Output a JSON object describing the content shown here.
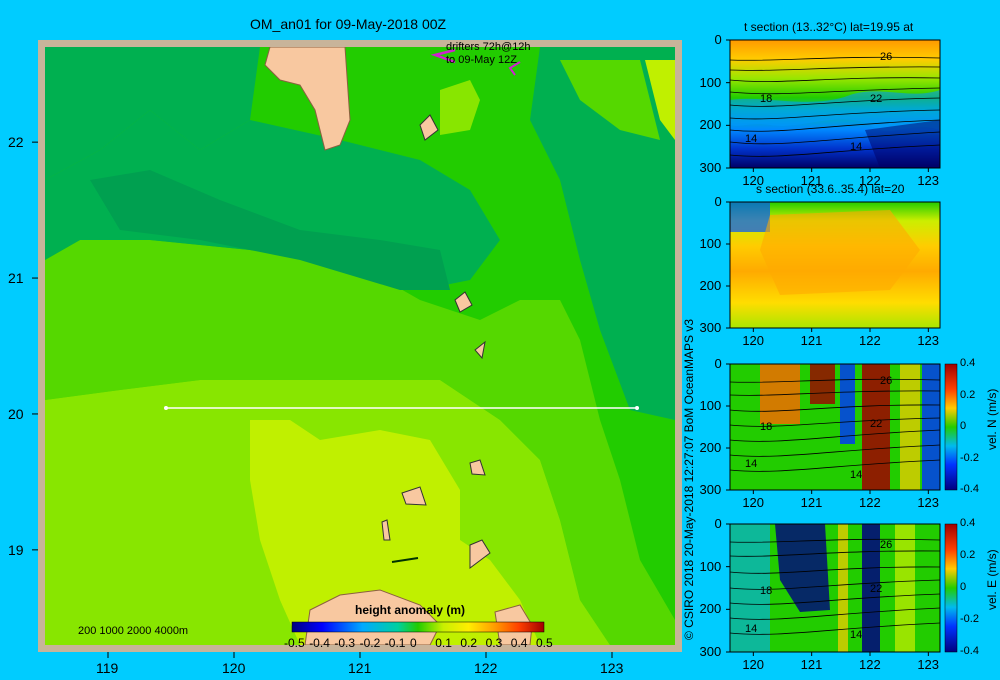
{
  "main_map": {
    "title": "OM_an01 for 09-May-2018 00Z",
    "drifters_line1": "drifters 72h@12h",
    "drifters_line2": "to 09-May 12Z",
    "depth_scale_label": "200  1000  2000  4000m",
    "colorbar_label": "height anomaly  (m)",
    "colorbar_ticks": [
      "-0.5",
      "-0.4",
      "-0.3",
      "-0.2",
      "-0.1",
      "0",
      "0.1",
      "0.2",
      "0.3",
      "0.4",
      "0.5"
    ],
    "colors": {
      "sea_dark": "#00b050",
      "sea_mid": "#22cc00",
      "sea_light": "#88e600",
      "sea_lightest": "#c0f000",
      "land": "#f8c8a0",
      "border": "#c8b49a",
      "drifter": "#d020d0"
    }
  },
  "credit": "© CSIRO 2018  20-May-2018 12:27:07 BoM OceanMAPS v3",
  "chart_data": [
    {
      "type": "heatmap",
      "title": "OM_an01 for 09-May-2018 00Z",
      "colorbar_label": "height anomaly  (m)",
      "colorbar_range": [
        -0.5,
        0.5
      ],
      "xlim": [
        118.5,
        123.5
      ],
      "ylim": [
        18.3,
        22.7
      ],
      "x_ticks": [
        119,
        120,
        121,
        122,
        123
      ],
      "y_ticks": [
        19,
        20,
        21,
        22
      ],
      "section_line": {
        "lat": 20,
        "lon": [
          119.5,
          123.2
        ]
      }
    },
    {
      "type": "heatmap",
      "title": "t section (13..32°C) lat=19.95 at",
      "xlim": [
        119.6,
        123.2
      ],
      "ylim": [
        300,
        0
      ],
      "x_ticks": [
        120,
        121,
        122,
        123
      ],
      "y_ticks": [
        0,
        100,
        200,
        300
      ],
      "contour_labels": [
        "26",
        "22",
        "18",
        "14",
        "14"
      ]
    },
    {
      "type": "heatmap",
      "title": "s section (33.6..35.4) lat=20",
      "xlim": [
        119.6,
        123.2
      ],
      "ylim": [
        300,
        0
      ],
      "x_ticks": [
        120,
        121,
        122,
        123
      ],
      "y_ticks": [
        0,
        100,
        200,
        300
      ]
    },
    {
      "type": "heatmap",
      "colorbar_label": "vel. N  (m/s)",
      "colorbar_ticks": [
        "0.4",
        "0.2",
        "0",
        "-0.2",
        "-0.4"
      ],
      "xlim": [
        119.6,
        123.2
      ],
      "ylim": [
        300,
        0
      ],
      "x_ticks": [
        120,
        121,
        122,
        123
      ],
      "y_ticks": [
        0,
        100,
        200,
        300
      ],
      "contour_labels": [
        "26",
        "22",
        "18",
        "14",
        "14"
      ]
    },
    {
      "type": "heatmap",
      "colorbar_label": "vel. E  (m/s)",
      "colorbar_ticks": [
        "0.4",
        "0.2",
        "0",
        "-0.2",
        "-0.4"
      ],
      "xlim": [
        119.6,
        123.2
      ],
      "ylim": [
        300,
        0
      ],
      "x_ticks": [
        120,
        121,
        122,
        123
      ],
      "y_ticks": [
        0,
        100,
        200,
        300
      ],
      "contour_labels": [
        "26",
        "22",
        "18",
        "14",
        "14"
      ]
    }
  ]
}
